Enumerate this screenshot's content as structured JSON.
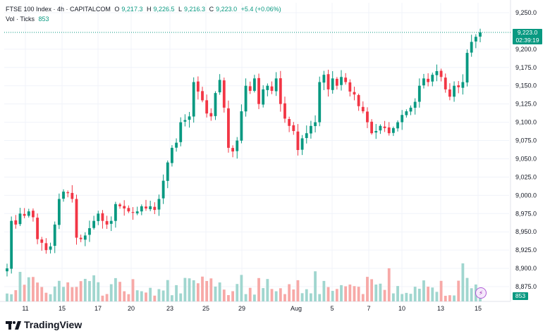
{
  "legend": {
    "symbol": "FTSE 100 Index · 4h · CAPITALCOM",
    "o_label": "O",
    "o_value": "9,217.3",
    "h_label": "H",
    "h_value": "9,226.5",
    "l_label": "L",
    "l_value": "9,216.3",
    "c_label": "C",
    "c_value": "9,223.0",
    "change": "+5.4 (+0.06%)",
    "vol_label": "Vol · Ticks",
    "vol_value": "853"
  },
  "last_price": {
    "price": "9,223.0",
    "countdown": "02:39:19"
  },
  "last_volume": "853",
  "brand": {
    "name": "TradingView"
  },
  "colors": {
    "up": "#089981",
    "down": "#f23645",
    "up_vol": "#a0d6cf",
    "down_vol": "#f7a9a7",
    "grid": "#f0f3fa",
    "axis_text": "#131722"
  },
  "chart_data": {
    "type": "candlestick",
    "instrument": "FTSE 100 Index",
    "interval": "4h",
    "source": "CAPITALCOM",
    "y_ticks": [
      "9,250.0",
      "9,200.0",
      "9,175.0",
      "9,150.0",
      "9,125.0",
      "9,100.0",
      "9,075.0",
      "9,050.0",
      "9,025.0",
      "9,000.0",
      "8,975.0",
      "8,950.0",
      "8,925.0",
      "8,900.0",
      "8,875.0"
    ],
    "x_ticks": [
      "11",
      "15",
      "17",
      "20",
      "23",
      "25",
      "29",
      "Aug",
      "5",
      "7",
      "10",
      "13",
      "15"
    ],
    "ylim": [
      8865,
      9260
    ],
    "closes": [
      8900,
      8965,
      8960,
      8975,
      8972,
      8978,
      8970,
      8940,
      8935,
      8925,
      8930,
      8960,
      8995,
      9005,
      9003,
      8995,
      8942,
      8940,
      8945,
      8955,
      8965,
      8975,
      8965,
      8960,
      8965,
      8988,
      8985,
      8982,
      8978,
      8976,
      8978,
      8985,
      8982,
      8985,
      8980,
      8995,
      9020,
      9045,
      9065,
      9072,
      9100,
      9103,
      9108,
      9155,
      9142,
      9130,
      9112,
      9108,
      9140,
      9158,
      9120,
      9065,
      9060,
      9075,
      9115,
      9150,
      9143,
      9160,
      9125,
      9145,
      9150,
      9143,
      9160,
      9125,
      9105,
      9095,
      9088,
      9062,
      9078,
      9085,
      9095,
      9100,
      9155,
      9165,
      9145,
      9160,
      9150,
      9162,
      9155,
      9142,
      9138,
      9122,
      9115,
      9100,
      9085,
      9088,
      9095,
      9092,
      9085,
      9092,
      9100,
      9110,
      9115,
      9120,
      9128,
      9150,
      9160,
      9155,
      9165,
      9170,
      9162,
      9145,
      9135,
      9150,
      9148,
      9155,
      9195,
      9210,
      9217,
      9223
    ]
  }
}
